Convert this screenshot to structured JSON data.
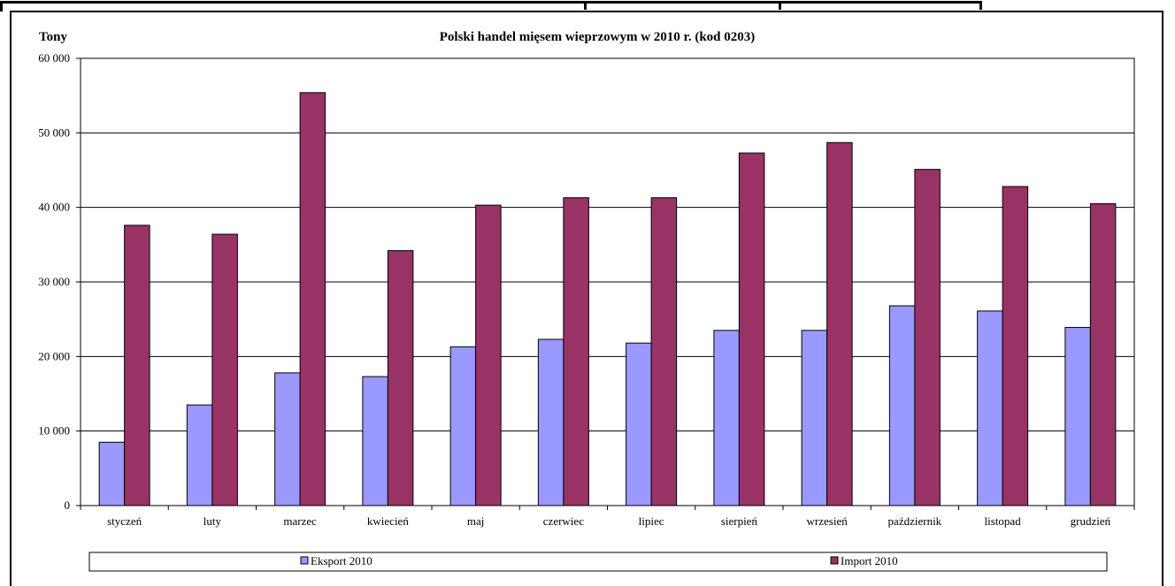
{
  "chart_data": {
    "type": "bar",
    "title": "Polski handel mięsem wieprzowym w 2010 r. (kod 0203)",
    "ylabel": "Tony",
    "xlabel": "",
    "ylim": [
      0,
      60000
    ],
    "yticks": [
      "0",
      "10 000",
      "20 000",
      "30 000",
      "40 000",
      "50 000",
      "60 000"
    ],
    "grid": true,
    "legend_position": "bottom",
    "categories": [
      "styczeń",
      "luty",
      "marzec",
      "kwiecień",
      "maj",
      "czerwiec",
      "lipiec",
      "sierpień",
      "wrzesień",
      "październik",
      "listopad",
      "grudzień"
    ],
    "series": [
      {
        "name": "Eksport 2010",
        "color": "#9999ff",
        "values": [
          8500,
          13500,
          17800,
          17300,
          21300,
          22300,
          21800,
          23500,
          23500,
          26800,
          26100,
          23900
        ]
      },
      {
        "name": "Import 2010",
        "color": "#993366",
        "values": [
          37600,
          36400,
          55400,
          34200,
          40300,
          41300,
          41300,
          47300,
          48700,
          45100,
          42800,
          40500
        ]
      }
    ]
  }
}
